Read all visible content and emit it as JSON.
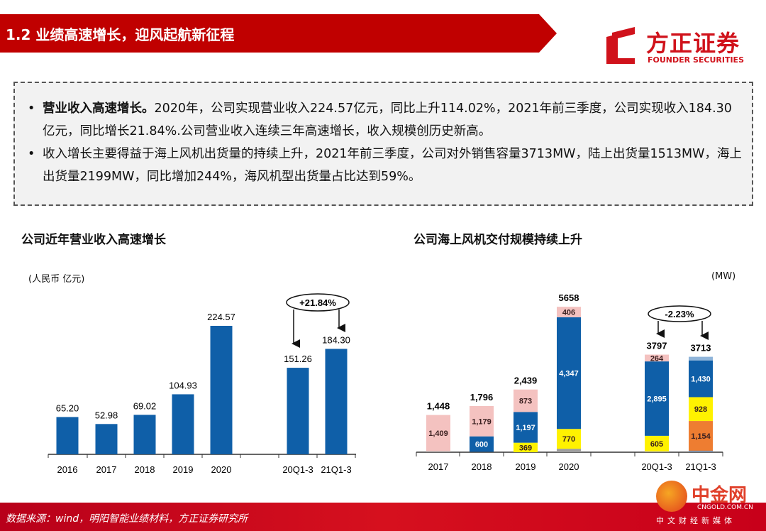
{
  "header": {
    "title": "1.2 业绩高速增长，迎风起航新征程",
    "logo_cn": "方正证券",
    "logo_en": "FOUNDER SECURITIES",
    "brand_color": "#c00000"
  },
  "summary": [
    {
      "bold": "营业收入高速增长。",
      "text": "2020年，公司实现营业收入224.57亿元，同比上升114.02%，2021年前三季度，公司实现收入184.30亿元，同比增长21.84%.公司营业收入连续三年高速增长，收入规模创历史新高。"
    },
    {
      "bold": "",
      "text": "收入增长主要得益于海上风机出货量的持续上升，2021年前三季度，公司对外销售容量3713MW，陆上出货量1513MW，海上出货量2199MW，同比增加244%，海风机型出货量占比达到59%。"
    }
  ],
  "chart_data": [
    {
      "type": "bar",
      "title": "公司近年营业收入高速增长",
      "unit": "(人民币 亿元)",
      "categories": [
        "2016",
        "2017",
        "2018",
        "2019",
        "2020",
        "",
        "20Q1-3",
        "21Q1-3"
      ],
      "values": [
        65.2,
        52.98,
        69.02,
        104.93,
        224.57,
        null,
        151.26,
        184.3
      ],
      "labels": [
        "65.20",
        "52.98",
        "69.02",
        "104.93",
        "224.57",
        "",
        "151.26",
        "184.30"
      ],
      "color": "#0f5fa8",
      "annotation": "+21.84%",
      "grid": false
    },
    {
      "type": "stacked-bar",
      "title": "公司海上风机交付规模持续上升",
      "unit": "(MW)",
      "categories": [
        "2017",
        "2018",
        "2019",
        "2020",
        "",
        "20Q1-3",
        "21Q1-3"
      ],
      "totals": [
        1448,
        1796,
        2439,
        5658,
        null,
        3797,
        3713
      ],
      "total_labels": [
        "1,448",
        "1,796",
        "2,439",
        "5658",
        "",
        "3797",
        "3713"
      ],
      "segment_colors": {
        "orange": "#ee7d31",
        "yellow": "#fff200",
        "blue": "#0f5fa8",
        "pink": "#f4c2c0"
      },
      "segments": [
        [
          {
            "color": "pink",
            "value": 1409,
            "label": "1,409"
          }
        ],
        [
          {
            "color": "blue",
            "value": 600,
            "label": "600"
          },
          {
            "color": "pink",
            "value": 1179,
            "label": "1,179"
          }
        ],
        [
          {
            "color": "yellow",
            "value": 369,
            "label": "369"
          },
          {
            "color": "blue",
            "value": 1197,
            "label": "1,197"
          },
          {
            "color": "pink",
            "value": 873,
            "label": "873"
          }
        ],
        [
          {
            "color": "yellow",
            "value": 770,
            "label": "770"
          },
          {
            "color": "blue",
            "value": 4347,
            "label": "4,347"
          },
          {
            "color": "pink",
            "value": 406,
            "label": "406"
          }
        ],
        [],
        [
          {
            "color": "yellow",
            "value": 605,
            "label": "605"
          },
          {
            "color": "blue",
            "value": 2895,
            "label": "2,895"
          },
          {
            "color": "pink",
            "value": 264,
            "label": "264"
          }
        ],
        [
          {
            "color": "orange",
            "value": 1154,
            "label": "1,154"
          },
          {
            "color": "yellow",
            "value": 928,
            "label": "928"
          },
          {
            "color": "blue",
            "value": 1430,
            "label": "1,430"
          }
        ]
      ],
      "annotation": "-2.23%",
      "grid": false
    }
  ],
  "footer": {
    "source": "数据来源：wind，明阳智能业绩材料，方正证券研究所"
  },
  "watermark": {
    "name": "中金网",
    "domain": "CNGOLD.COM.CN",
    "slogan": "中文财经新媒体"
  }
}
